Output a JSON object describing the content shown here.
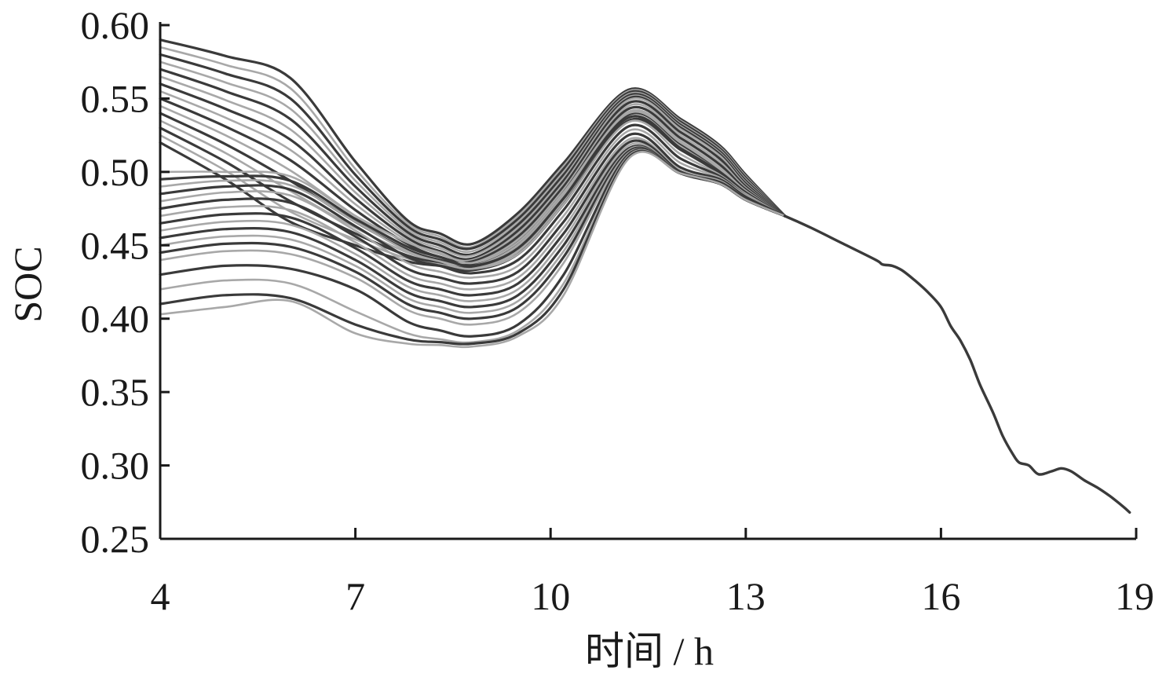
{
  "chart_data": {
    "type": "line",
    "title": "",
    "xlabel": "时间 / h",
    "ylabel": "SOC",
    "xlim": [
      4,
      19
    ],
    "ylim": [
      0.25,
      0.6
    ],
    "x_ticks": [
      "4",
      "7",
      "10",
      "13",
      "16",
      "19"
    ],
    "y_ticks": [
      "0.25",
      "0.30",
      "0.35",
      "0.40",
      "0.45",
      "0.50",
      "0.55",
      "0.60"
    ],
    "grid": false,
    "legend": "none",
    "line_colors": [
      "#3a3a3a",
      "#a8a8a8"
    ],
    "shared_segment": {
      "x": [
        13.6,
        14.0,
        14.5,
        15.0,
        15.1,
        15.25,
        15.4,
        15.6,
        15.8,
        16.0,
        16.15,
        16.3,
        16.45,
        16.6,
        16.8,
        16.95,
        17.1,
        17.2,
        17.35,
        17.5,
        17.7,
        17.85,
        18.0,
        18.2,
        18.4,
        18.6,
        18.8,
        18.9
      ],
      "y": [
        0.47,
        0.462,
        0.451,
        0.44,
        0.437,
        0.436,
        0.433,
        0.426,
        0.418,
        0.408,
        0.395,
        0.385,
        0.372,
        0.355,
        0.336,
        0.32,
        0.308,
        0.302,
        0.3,
        0.294,
        0.296,
        0.298,
        0.296,
        0.29,
        0.285,
        0.279,
        0.272,
        0.268
      ]
    },
    "series": [
      {
        "x": [
          4,
          5.0,
          6.0,
          7.0,
          7.8,
          8.3,
          8.8,
          9.5,
          10.2,
          11.2,
          12.0,
          12.6,
          13.0,
          13.6
        ],
        "y": [
          0.59,
          0.579,
          0.564,
          0.507,
          0.467,
          0.458,
          0.451,
          0.472,
          0.506,
          0.556,
          0.536,
          0.518,
          0.498,
          0.47
        ]
      },
      {
        "x": [
          4,
          5.0,
          6.0,
          7.0,
          7.8,
          8.3,
          8.8,
          9.5,
          10.2,
          11.2,
          12.0,
          12.6,
          13.0,
          13.6
        ],
        "y": [
          0.585,
          0.573,
          0.557,
          0.502,
          0.465,
          0.456,
          0.449,
          0.47,
          0.504,
          0.555,
          0.535,
          0.517,
          0.497,
          0.47
        ]
      },
      {
        "x": [
          4,
          5.0,
          6.0,
          7.0,
          7.8,
          8.3,
          8.8,
          9.5,
          10.2,
          11.2,
          12.0,
          12.6,
          13.0,
          13.6
        ],
        "y": [
          0.58,
          0.567,
          0.55,
          0.498,
          0.463,
          0.454,
          0.448,
          0.468,
          0.502,
          0.554,
          0.534,
          0.516,
          0.496,
          0.47
        ]
      },
      {
        "x": [
          4,
          5.0,
          6.0,
          7.0,
          7.8,
          8.3,
          8.8,
          9.5,
          10.2,
          11.2,
          12.0,
          12.6,
          13.0,
          13.6
        ],
        "y": [
          0.575,
          0.561,
          0.543,
          0.494,
          0.461,
          0.452,
          0.446,
          0.466,
          0.5,
          0.553,
          0.533,
          0.515,
          0.495,
          0.47
        ]
      },
      {
        "x": [
          4,
          5.0,
          6.0,
          7.0,
          7.8,
          8.3,
          8.8,
          9.5,
          10.2,
          11.2,
          12.0,
          12.6,
          13.0,
          13.6
        ],
        "y": [
          0.57,
          0.555,
          0.536,
          0.49,
          0.459,
          0.45,
          0.444,
          0.464,
          0.498,
          0.552,
          0.532,
          0.514,
          0.494,
          0.47
        ]
      },
      {
        "x": [
          4,
          5.0,
          6.0,
          7.0,
          7.8,
          8.3,
          8.8,
          9.5,
          10.2,
          11.2,
          12.0,
          12.6,
          13.0,
          13.6
        ],
        "y": [
          0.565,
          0.549,
          0.529,
          0.486,
          0.457,
          0.448,
          0.443,
          0.462,
          0.496,
          0.551,
          0.531,
          0.513,
          0.493,
          0.47
        ]
      },
      {
        "x": [
          4,
          5.0,
          6.0,
          7.0,
          7.8,
          8.3,
          8.8,
          9.5,
          10.2,
          11.2,
          12.0,
          12.6,
          13.0,
          13.6
        ],
        "y": [
          0.56,
          0.543,
          0.522,
          0.482,
          0.455,
          0.446,
          0.441,
          0.46,
          0.494,
          0.55,
          0.53,
          0.512,
          0.492,
          0.47
        ]
      },
      {
        "x": [
          4,
          5.0,
          6.0,
          7.0,
          7.8,
          8.3,
          8.8,
          9.5,
          10.2,
          11.2,
          12.0,
          12.6,
          13.0,
          13.6
        ],
        "y": [
          0.555,
          0.537,
          0.515,
          0.478,
          0.453,
          0.444,
          0.44,
          0.458,
          0.492,
          0.549,
          0.529,
          0.511,
          0.491,
          0.47
        ]
      },
      {
        "x": [
          4,
          5.0,
          6.0,
          7.0,
          7.8,
          8.3,
          8.8,
          9.5,
          10.2,
          11.2,
          12.0,
          12.6,
          13.0,
          13.6
        ],
        "y": [
          0.55,
          0.531,
          0.508,
          0.474,
          0.451,
          0.442,
          0.439,
          0.456,
          0.49,
          0.547,
          0.527,
          0.509,
          0.49,
          0.47
        ]
      },
      {
        "x": [
          4,
          5.0,
          6.0,
          7.0,
          7.8,
          8.3,
          8.8,
          9.5,
          10.2,
          11.2,
          12.0,
          12.6,
          13.0,
          13.6
        ],
        "y": [
          0.545,
          0.525,
          0.501,
          0.47,
          0.449,
          0.441,
          0.438,
          0.454,
          0.488,
          0.545,
          0.525,
          0.507,
          0.489,
          0.47
        ]
      },
      {
        "x": [
          4,
          5.0,
          6.0,
          7.0,
          7.8,
          8.3,
          8.8,
          9.5,
          10.2,
          11.2,
          12.0,
          12.6,
          13.0,
          13.6
        ],
        "y": [
          0.54,
          0.519,
          0.494,
          0.466,
          0.447,
          0.44,
          0.437,
          0.452,
          0.486,
          0.543,
          0.523,
          0.505,
          0.488,
          0.47
        ]
      },
      {
        "x": [
          4,
          5.0,
          6.0,
          7.0,
          7.8,
          8.3,
          8.8,
          9.5,
          10.2,
          11.2,
          12.0,
          12.6,
          13.0,
          13.6
        ],
        "y": [
          0.535,
          0.513,
          0.487,
          0.462,
          0.445,
          0.439,
          0.436,
          0.45,
          0.484,
          0.541,
          0.521,
          0.503,
          0.487,
          0.47
        ]
      },
      {
        "x": [
          4,
          5.0,
          6.0,
          7.0,
          7.8,
          8.3,
          8.8,
          9.5,
          10.2,
          11.2,
          12.0,
          12.6,
          13.0,
          13.6
        ],
        "y": [
          0.53,
          0.507,
          0.48,
          0.458,
          0.443,
          0.438,
          0.435,
          0.448,
          0.482,
          0.539,
          0.519,
          0.501,
          0.486,
          0.47
        ]
      },
      {
        "x": [
          4,
          5.0,
          6.0,
          7.0,
          7.8,
          8.3,
          8.8,
          9.5,
          10.2,
          11.2,
          12.0,
          12.6,
          13.0,
          13.6
        ],
        "y": [
          0.525,
          0.501,
          0.473,
          0.454,
          0.441,
          0.437,
          0.434,
          0.446,
          0.48,
          0.537,
          0.517,
          0.5,
          0.485,
          0.47
        ]
      },
      {
        "x": [
          4,
          5.0,
          6.0,
          7.0,
          7.8,
          8.3,
          8.8,
          9.5,
          10.2,
          11.2,
          12.0,
          12.6,
          13.0,
          13.6
        ],
        "y": [
          0.52,
          0.495,
          0.466,
          0.45,
          0.439,
          0.436,
          0.433,
          0.444,
          0.478,
          0.535,
          0.515,
          0.499,
          0.484,
          0.47
        ]
      },
      {
        "x": [
          4,
          5.0,
          6.0,
          7.0,
          7.8,
          8.3,
          8.8,
          9.5,
          10.2,
          11.2,
          12.0,
          12.6,
          13.0,
          13.6
        ],
        "y": [
          0.5,
          0.5,
          0.497,
          0.47,
          0.452,
          0.445,
          0.438,
          0.452,
          0.486,
          0.54,
          0.52,
          0.502,
          0.487,
          0.47
        ]
      },
      {
        "x": [
          4,
          5.0,
          6.0,
          7.0,
          7.8,
          8.3,
          8.8,
          9.5,
          10.2,
          11.2,
          12.0,
          12.6,
          13.0,
          13.6
        ],
        "y": [
          0.495,
          0.497,
          0.494,
          0.468,
          0.449,
          0.442,
          0.436,
          0.448,
          0.482,
          0.537,
          0.516,
          0.5,
          0.486,
          0.47
        ]
      },
      {
        "x": [
          4,
          5.0,
          6.0,
          7.0,
          7.8,
          8.3,
          8.8,
          9.5,
          10.2,
          11.2,
          12.0,
          12.6,
          13.0,
          13.6
        ],
        "y": [
          0.49,
          0.494,
          0.491,
          0.466,
          0.446,
          0.439,
          0.434,
          0.444,
          0.478,
          0.534,
          0.512,
          0.498,
          0.485,
          0.47
        ]
      },
      {
        "x": [
          4,
          5.0,
          6.0,
          7.0,
          7.8,
          8.3,
          8.8,
          9.5,
          10.2,
          11.2,
          12.0,
          12.6,
          13.0,
          13.6
        ],
        "y": [
          0.485,
          0.49,
          0.488,
          0.463,
          0.442,
          0.436,
          0.431,
          0.44,
          0.474,
          0.531,
          0.509,
          0.497,
          0.484,
          0.47
        ]
      },
      {
        "x": [
          4,
          5.0,
          6.0,
          7.0,
          7.8,
          8.3,
          8.8,
          9.5,
          10.2,
          11.2,
          12.0,
          12.6,
          13.0,
          13.6
        ],
        "y": [
          0.48,
          0.486,
          0.484,
          0.46,
          0.438,
          0.432,
          0.428,
          0.436,
          0.47,
          0.528,
          0.506,
          0.496,
          0.484,
          0.47
        ]
      },
      {
        "x": [
          4,
          5.0,
          6.0,
          7.0,
          7.8,
          8.3,
          8.8,
          9.5,
          10.2,
          11.2,
          12.0,
          12.6,
          13.0,
          13.6
        ],
        "y": [
          0.475,
          0.481,
          0.479,
          0.456,
          0.434,
          0.428,
          0.424,
          0.432,
          0.466,
          0.525,
          0.503,
          0.495,
          0.483,
          0.47
        ]
      },
      {
        "x": [
          4,
          5.0,
          6.0,
          7.0,
          7.8,
          8.3,
          8.8,
          9.5,
          10.2,
          11.2,
          12.0,
          12.6,
          13.0,
          13.6
        ],
        "y": [
          0.47,
          0.476,
          0.474,
          0.452,
          0.43,
          0.424,
          0.42,
          0.428,
          0.462,
          0.522,
          0.501,
          0.494,
          0.482,
          0.47
        ]
      },
      {
        "x": [
          4,
          5.0,
          6.0,
          7.0,
          7.8,
          8.3,
          8.8,
          9.5,
          10.2,
          11.2,
          12.0,
          12.6,
          13.0,
          13.6
        ],
        "y": [
          0.465,
          0.471,
          0.469,
          0.448,
          0.426,
          0.42,
          0.416,
          0.424,
          0.458,
          0.52,
          0.5,
          0.493,
          0.482,
          0.47
        ]
      },
      {
        "x": [
          4,
          5.0,
          6.0,
          7.0,
          7.8,
          8.3,
          8.8,
          9.5,
          10.2,
          11.2,
          12.0,
          12.6,
          13.0,
          13.6
        ],
        "y": [
          0.46,
          0.466,
          0.464,
          0.444,
          0.422,
          0.416,
          0.412,
          0.42,
          0.454,
          0.518,
          0.499,
          0.492,
          0.481,
          0.47
        ]
      },
      {
        "x": [
          4,
          5.0,
          6.0,
          7.0,
          7.8,
          8.3,
          8.8,
          9.5,
          10.2,
          11.2,
          12.0,
          12.6,
          13.0,
          13.6
        ],
        "y": [
          0.455,
          0.461,
          0.459,
          0.44,
          0.418,
          0.412,
          0.408,
          0.416,
          0.45,
          0.516,
          0.499,
          0.492,
          0.481,
          0.47
        ]
      },
      {
        "x": [
          4,
          5.0,
          6.0,
          7.0,
          7.8,
          8.3,
          8.8,
          9.5,
          10.2,
          11.2,
          12.0,
          12.6,
          13.0,
          13.6
        ],
        "y": [
          0.45,
          0.456,
          0.454,
          0.436,
          0.414,
          0.408,
          0.404,
          0.412,
          0.446,
          0.515,
          0.499,
          0.492,
          0.481,
          0.47
        ]
      },
      {
        "x": [
          4,
          5.0,
          6.0,
          7.0,
          7.8,
          8.3,
          8.8,
          9.5,
          10.2,
          11.2,
          12.0,
          12.6,
          13.0,
          13.6
        ],
        "y": [
          0.445,
          0.451,
          0.449,
          0.432,
          0.41,
          0.404,
          0.4,
          0.408,
          0.442,
          0.514,
          0.499,
          0.492,
          0.481,
          0.47
        ]
      },
      {
        "x": [
          4,
          5.0,
          6.0,
          7.0,
          7.8,
          8.3,
          8.8,
          9.5,
          10.2,
          11.2,
          12.0,
          12.6,
          13.0,
          13.6
        ],
        "y": [
          0.44,
          0.446,
          0.444,
          0.428,
          0.406,
          0.4,
          0.396,
          0.404,
          0.438,
          0.513,
          0.499,
          0.492,
          0.481,
          0.47
        ]
      },
      {
        "x": [
          4,
          5.0,
          6.0,
          7.0,
          7.8,
          8.3,
          8.8,
          9.5,
          10.2,
          11.2,
          12.0,
          12.6,
          13.0,
          13.6
        ],
        "y": [
          0.43,
          0.436,
          0.434,
          0.42,
          0.398,
          0.392,
          0.388,
          0.396,
          0.43,
          0.512,
          0.499,
          0.492,
          0.481,
          0.47
        ]
      },
      {
        "x": [
          4,
          5.0,
          6.0,
          7.0,
          7.8,
          8.3,
          8.8,
          9.5,
          10.2,
          11.2,
          12.0,
          12.6,
          13.0,
          13.6
        ],
        "y": [
          0.42,
          0.426,
          0.424,
          0.405,
          0.39,
          0.386,
          0.384,
          0.392,
          0.424,
          0.511,
          0.499,
          0.492,
          0.481,
          0.47
        ]
      },
      {
        "x": [
          4,
          5.0,
          6.0,
          7.0,
          7.8,
          8.3,
          8.8,
          9.5,
          10.2,
          11.2,
          12.0,
          12.6,
          13.0,
          13.6
        ],
        "y": [
          0.41,
          0.416,
          0.414,
          0.396,
          0.386,
          0.384,
          0.383,
          0.39,
          0.42,
          0.51,
          0.499,
          0.492,
          0.481,
          0.47
        ]
      },
      {
        "x": [
          4,
          5.0,
          6.0,
          7.0,
          7.8,
          8.3,
          8.8,
          9.5,
          10.2,
          11.2,
          12.0,
          12.6,
          13.0,
          13.6
        ],
        "y": [
          0.403,
          0.408,
          0.412,
          0.39,
          0.383,
          0.382,
          0.381,
          0.388,
          0.416,
          0.509,
          0.499,
          0.492,
          0.481,
          0.47
        ]
      }
    ]
  }
}
